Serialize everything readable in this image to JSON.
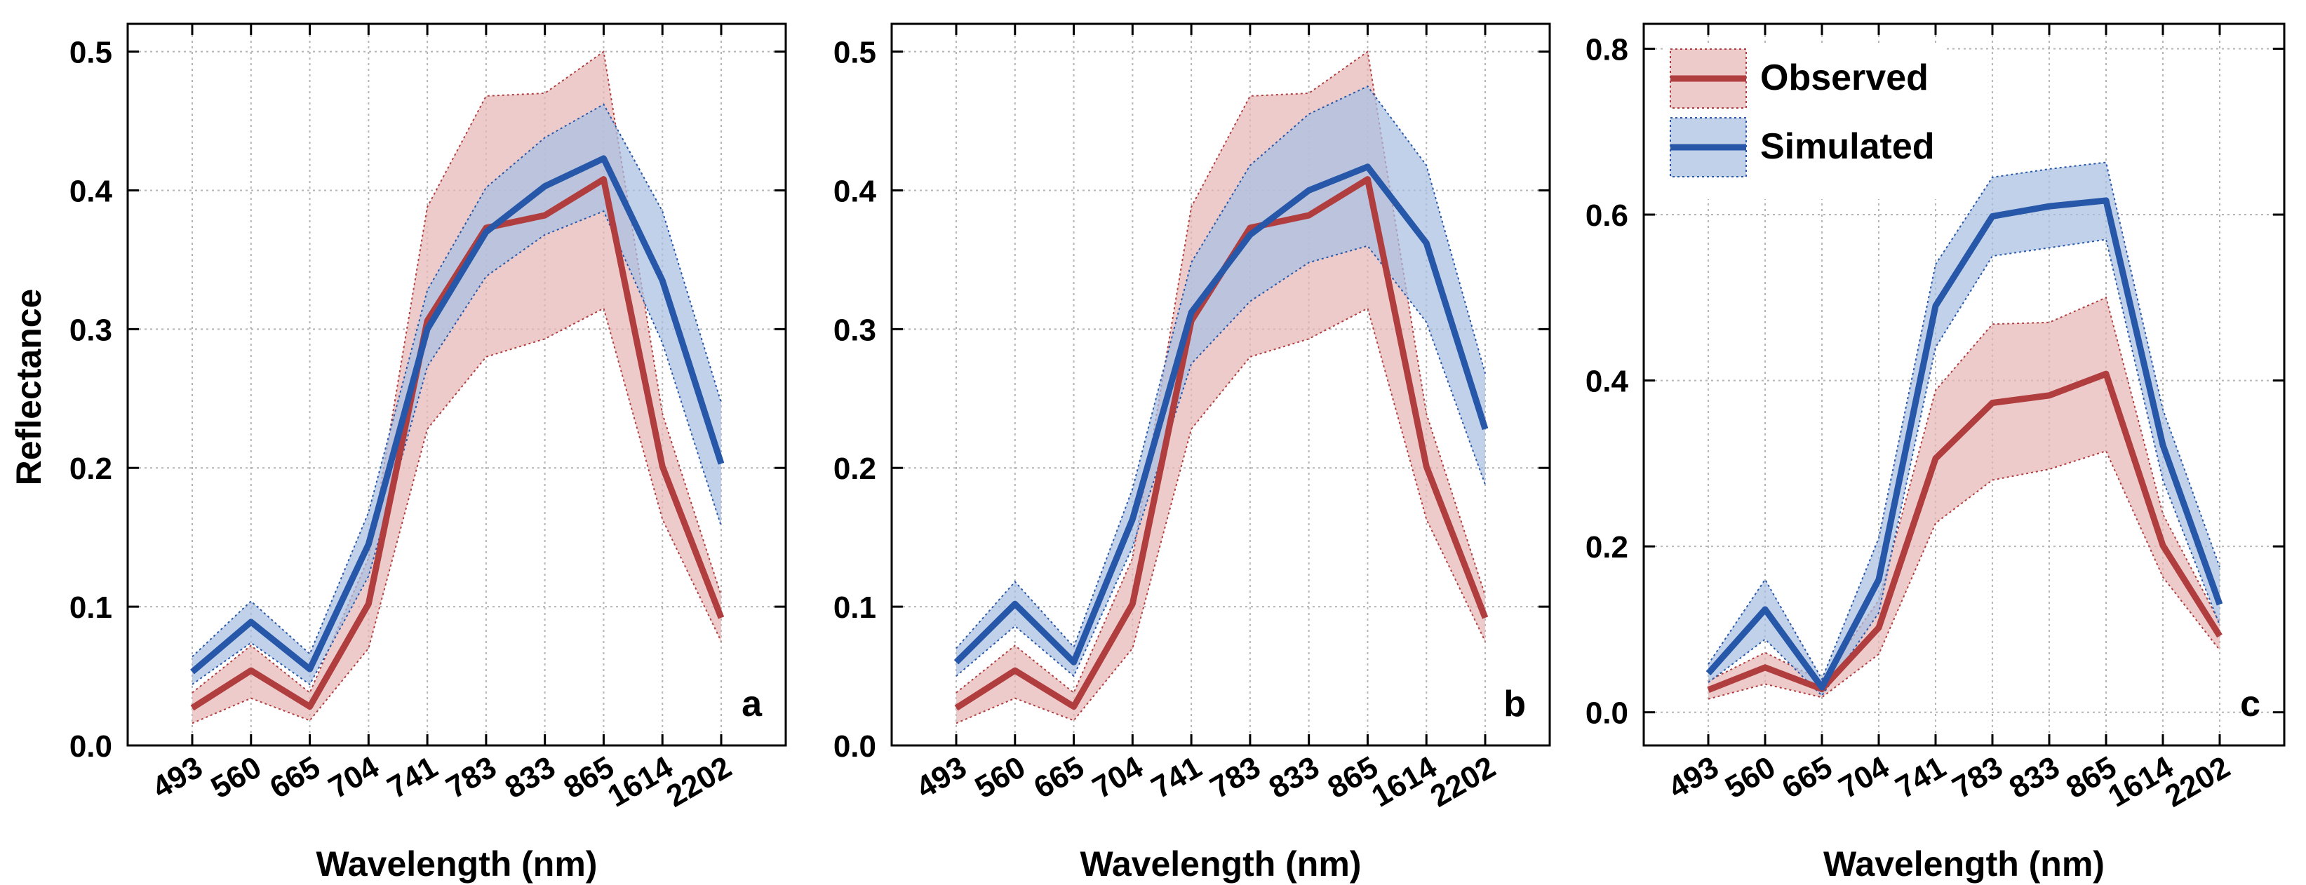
{
  "figure": {
    "ylabel": "Reflectance",
    "xlabel": "Wavelength (nm)"
  },
  "colors": {
    "observed_line": "#b13e3f",
    "observed_band": "#e8b7b7",
    "simulated_line": "#2757a8",
    "simulated_band": "#a9bfe2",
    "grid": "#b5b5b5"
  },
  "chart_data": [
    {
      "type": "line",
      "panel_label": "a",
      "categories": [
        "493",
        "560",
        "665",
        "704",
        "741",
        "783",
        "833",
        "865",
        "1614",
        "2202"
      ],
      "xlabel": "Wavelength (nm)",
      "ylabel": "Reflectance",
      "ylim": [
        0,
        0.52
      ],
      "yticks": [
        0.0,
        0.1,
        0.2,
        0.3,
        0.4,
        0.5
      ],
      "ytick_labels": [
        "0.0",
        "0.1",
        "0.2",
        "0.3",
        "0.4",
        "0.5"
      ],
      "grid": true,
      "legend": null,
      "series": [
        {
          "name": "Observed",
          "values": [
            0.027,
            0.054,
            0.028,
            0.102,
            0.306,
            0.373,
            0.382,
            0.408,
            0.201,
            0.092
          ],
          "lower": [
            0.016,
            0.034,
            0.018,
            0.07,
            0.228,
            0.28,
            0.293,
            0.315,
            0.163,
            0.075
          ],
          "upper": [
            0.038,
            0.072,
            0.038,
            0.135,
            0.388,
            0.468,
            0.47,
            0.5,
            0.239,
            0.108
          ]
        },
        {
          "name": "Simulated",
          "values": [
            0.053,
            0.089,
            0.055,
            0.145,
            0.3,
            0.37,
            0.403,
            0.423,
            0.335,
            0.203
          ],
          "lower": [
            0.044,
            0.074,
            0.044,
            0.122,
            0.273,
            0.338,
            0.368,
            0.385,
            0.29,
            0.158
          ],
          "upper": [
            0.064,
            0.104,
            0.066,
            0.168,
            0.328,
            0.402,
            0.438,
            0.462,
            0.385,
            0.247
          ]
        }
      ]
    },
    {
      "type": "line",
      "panel_label": "b",
      "categories": [
        "493",
        "560",
        "665",
        "704",
        "741",
        "783",
        "833",
        "865",
        "1614",
        "2202"
      ],
      "xlabel": "Wavelength (nm)",
      "ylabel": "",
      "ylim": [
        0,
        0.52
      ],
      "yticks": [
        0.0,
        0.1,
        0.2,
        0.3,
        0.4,
        0.5
      ],
      "ytick_labels": [
        "0.0",
        "0.1",
        "0.2",
        "0.3",
        "0.4",
        "0.5"
      ],
      "grid": true,
      "legend": null,
      "series": [
        {
          "name": "Observed",
          "values": [
            0.027,
            0.054,
            0.028,
            0.102,
            0.306,
            0.373,
            0.382,
            0.408,
            0.201,
            0.092
          ],
          "lower": [
            0.016,
            0.034,
            0.018,
            0.07,
            0.228,
            0.28,
            0.293,
            0.315,
            0.163,
            0.075
          ],
          "upper": [
            0.038,
            0.072,
            0.038,
            0.135,
            0.388,
            0.468,
            0.47,
            0.5,
            0.239,
            0.108
          ]
        },
        {
          "name": "Simulated",
          "values": [
            0.06,
            0.102,
            0.06,
            0.163,
            0.312,
            0.368,
            0.4,
            0.417,
            0.362,
            0.228
          ],
          "lower": [
            0.05,
            0.086,
            0.05,
            0.143,
            0.275,
            0.32,
            0.348,
            0.36,
            0.305,
            0.188
          ],
          "upper": [
            0.07,
            0.118,
            0.071,
            0.185,
            0.348,
            0.418,
            0.455,
            0.475,
            0.418,
            0.268
          ]
        }
      ]
    },
    {
      "type": "line",
      "panel_label": "c",
      "categories": [
        "493",
        "560",
        "665",
        "704",
        "741",
        "783",
        "833",
        "865",
        "1614",
        "2202"
      ],
      "xlabel": "Wavelength (nm)",
      "ylabel": "",
      "ylim": [
        -0.04,
        0.83
      ],
      "yticks": [
        0.0,
        0.2,
        0.4,
        0.6,
        0.8
      ],
      "ytick_labels": [
        "0.0",
        "0.2",
        "0.4",
        "0.6",
        "0.8"
      ],
      "grid": true,
      "legend": "top-left",
      "series": [
        {
          "name": "Observed",
          "values": [
            0.027,
            0.054,
            0.028,
            0.102,
            0.306,
            0.373,
            0.382,
            0.408,
            0.201,
            0.092
          ],
          "lower": [
            0.016,
            0.034,
            0.018,
            0.07,
            0.228,
            0.28,
            0.293,
            0.315,
            0.163,
            0.075
          ],
          "upper": [
            0.038,
            0.072,
            0.038,
            0.135,
            0.388,
            0.468,
            0.47,
            0.5,
            0.239,
            0.108
          ]
        },
        {
          "name": "Simulated",
          "values": [
            0.047,
            0.124,
            0.03,
            0.16,
            0.49,
            0.598,
            0.61,
            0.617,
            0.322,
            0.13
          ],
          "lower": [
            0.036,
            0.088,
            0.02,
            0.12,
            0.44,
            0.55,
            0.56,
            0.57,
            0.28,
            0.105
          ],
          "upper": [
            0.058,
            0.16,
            0.04,
            0.21,
            0.54,
            0.645,
            0.655,
            0.663,
            0.365,
            0.175
          ]
        }
      ]
    }
  ]
}
